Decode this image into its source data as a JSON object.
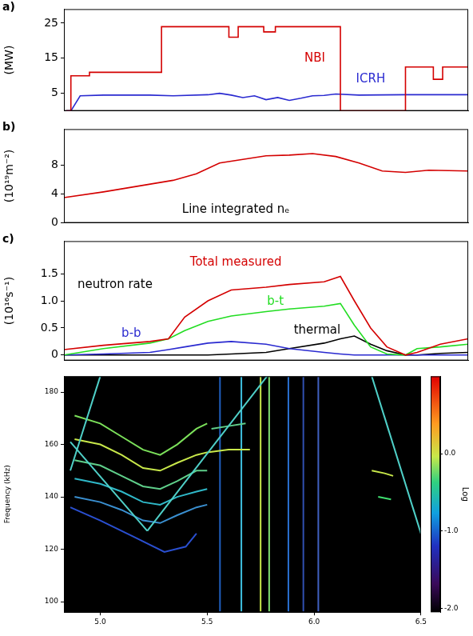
{
  "chart_data": [
    {
      "type": "line",
      "panel_label": "a)",
      "ylabel": "(MW)",
      "xlim": [
        4.83,
        6.57
      ],
      "ylim": [
        0,
        29
      ],
      "yticks": [
        5,
        15,
        25
      ],
      "grid": false,
      "tick_labels": "y",
      "series": [
        {
          "color": "#d40000",
          "x": [
            4.84,
            4.86,
            4.86,
            4.94,
            4.94,
            5.25,
            5.25,
            5.54,
            5.54,
            5.58,
            5.58,
            5.69,
            5.69,
            5.74,
            5.74,
            6.02,
            6.02,
            6.3,
            6.3,
            6.42,
            6.42,
            6.46,
            6.46,
            6.57
          ],
          "values": [
            0,
            0,
            10,
            10,
            11,
            11,
            24,
            24,
            21,
            21,
            24,
            24,
            22.5,
            22.5,
            24,
            24,
            0,
            0,
            12.5,
            12.5,
            9,
            9,
            12.5,
            12.5
          ]
        },
        {
          "color": "#2a2ad0",
          "x": [
            4.84,
            4.86,
            4.9,
            5.0,
            5.2,
            5.3,
            5.45,
            5.5,
            5.55,
            5.6,
            5.65,
            5.7,
            5.75,
            5.8,
            5.85,
            5.9,
            5.95,
            6.0,
            6.1,
            6.3,
            6.57
          ],
          "values": [
            0,
            0,
            4.3,
            4.5,
            4.5,
            4.3,
            4.6,
            5.0,
            4.5,
            3.8,
            4.3,
            3.2,
            3.8,
            3.0,
            3.6,
            4.3,
            4.4,
            4.8,
            4.5,
            4.6,
            4.6
          ]
        }
      ],
      "annotations": [
        {
          "text": "NBI",
          "x": 5.91,
          "y": 15,
          "color": "#d40000"
        },
        {
          "text": "ICRH",
          "x": 6.15,
          "y": 9,
          "color": "#2a2ad0"
        }
      ]
    },
    {
      "type": "line",
      "panel_label": "b)",
      "ylabel": "(10¹⁹m⁻²)",
      "xlim": [
        4.83,
        6.57
      ],
      "ylim": [
        0,
        13
      ],
      "yticks": [
        0,
        4,
        8
      ],
      "grid": false,
      "tick_labels": "y",
      "x": [
        4.83,
        5.0,
        5.15,
        5.3,
        5.4,
        5.5,
        5.6,
        5.7,
        5.8,
        5.9,
        6.0,
        6.1,
        6.2,
        6.3,
        6.4,
        6.57
      ],
      "series": [
        {
          "color": "#d40000",
          "values": [
            3.5,
            4.3,
            5.1,
            5.9,
            6.8,
            8.3,
            8.8,
            9.3,
            9.4,
            9.6,
            9.2,
            8.3,
            7.2,
            7.0,
            7.3,
            7.2
          ]
        }
      ],
      "annotations": [
        {
          "text": "Line integrated nₑ",
          "x": 5.57,
          "y": 1.8,
          "color": "#000000"
        }
      ]
    },
    {
      "type": "line",
      "panel_label": "c)",
      "ylabel": "(10¹⁶s⁻¹)",
      "xlim": [
        4.83,
        6.57
      ],
      "ylim": [
        -0.1,
        2.1
      ],
      "yticks": [
        0,
        0.5,
        {
          "value": 1,
          "label": "1.0"
        },
        1.5
      ],
      "grid": false,
      "tick_labels": "y",
      "x": [
        4.83,
        5.0,
        5.2,
        5.28,
        5.35,
        5.45,
        5.55,
        5.7,
        5.8,
        5.95,
        6.02,
        6.08,
        6.15,
        6.22,
        6.3,
        6.35,
        6.45,
        6.57
      ],
      "series": [
        {
          "color": "#d40000",
          "values": [
            0.1,
            0.18,
            0.25,
            0.3,
            0.7,
            1.0,
            1.2,
            1.25,
            1.3,
            1.35,
            1.45,
            1.0,
            0.5,
            0.15,
            0.0,
            0.05,
            0.2,
            0.3
          ]
        },
        {
          "color": "#22dd22",
          "values": [
            0,
            0.12,
            0.22,
            0.3,
            0.45,
            0.62,
            0.72,
            0.8,
            0.85,
            0.9,
            0.95,
            0.55,
            0.15,
            0.02,
            0,
            0.12,
            0.15,
            0.2
          ]
        },
        {
          "color": "#2a2ad0",
          "values": [
            0,
            0.02,
            0.05,
            0.1,
            0.15,
            0.22,
            0.25,
            0.2,
            0.12,
            0.05,
            0.02,
            0,
            0,
            0,
            0,
            0,
            0,
            0
          ]
        },
        {
          "color": "#000000",
          "values": [
            0,
            0,
            0,
            0,
            0,
            0,
            0.02,
            0.05,
            0.12,
            0.22,
            0.3,
            0.35,
            0.2,
            0.08,
            0,
            0,
            0.03,
            0.05
          ]
        }
      ],
      "annotations": [
        {
          "text": "Total measured",
          "x": 5.57,
          "y": 1.7,
          "color": "#d40000"
        },
        {
          "text": "neutron rate",
          "x": 5.05,
          "y": 1.3,
          "color": "#000000"
        },
        {
          "text": "b-t",
          "x": 5.74,
          "y": 0.98,
          "color": "#22dd22"
        },
        {
          "text": "b-b",
          "x": 5.12,
          "y": 0.4,
          "color": "#2a2ad0"
        },
        {
          "text": "thermal",
          "x": 5.92,
          "y": 0.45,
          "color": "#000000"
        }
      ]
    },
    {
      "type": "spectrogram",
      "ylabel": "Frequency (kHz)",
      "xlim": [
        4.83,
        6.5
      ],
      "ylim": [
        96,
        186
      ],
      "xticks": [
        {
          "value": 5,
          "label": "5.0"
        },
        5.5,
        {
          "value": 6,
          "label": "6.0"
        },
        6.5
      ],
      "yticks": [
        100,
        120,
        140,
        160,
        180
      ],
      "grid": false,
      "series": [
        {
          "color": "#4fd0c8",
          "x": [
            4.86,
            5.0
          ],
          "values": [
            150,
            186
          ]
        },
        {
          "color": "#4fd0c8",
          "x": [
            4.86,
            5.22
          ],
          "values": [
            161,
            127
          ]
        },
        {
          "color": "#4fd0c8",
          "x": [
            5.22,
            5.78
          ],
          "values": [
            127,
            186
          ]
        },
        {
          "color": "#4fd0c8",
          "x": [
            6.27,
            6.5
          ],
          "values": [
            186,
            126
          ]
        },
        {
          "color": "#7be05a",
          "x": [
            4.88,
            5.0,
            5.1,
            5.2,
            5.28,
            5.36,
            5.45,
            5.5
          ],
          "values": [
            171,
            168,
            163,
            158,
            156,
            160,
            166,
            168
          ]
        },
        {
          "color": "#c8e84a",
          "x": [
            4.88,
            5.0,
            5.1,
            5.2,
            5.28,
            5.36,
            5.45,
            5.5
          ],
          "values": [
            162,
            160,
            156,
            151,
            150,
            153,
            156,
            157
          ]
        },
        {
          "color": "#5fcf8a",
          "x": [
            4.88,
            5.0,
            5.1,
            5.2,
            5.28,
            5.36,
            5.45,
            5.5
          ],
          "values": [
            154,
            152,
            148,
            144,
            143,
            146,
            150,
            150
          ]
        },
        {
          "color": "#2fb8c8",
          "x": [
            4.88,
            5.0,
            5.1,
            5.2,
            5.28,
            5.36,
            5.45,
            5.5
          ],
          "values": [
            147,
            145,
            142,
            138,
            137,
            140,
            142,
            143
          ]
        },
        {
          "color": "#3a8fd0",
          "x": [
            4.88,
            5.0,
            5.1,
            5.2,
            5.28,
            5.36,
            5.45,
            5.5
          ],
          "values": [
            140,
            138,
            135,
            131,
            130,
            133,
            136,
            137
          ]
        },
        {
          "color": "#2a4fd0",
          "x": [
            4.86,
            5.0,
            5.15,
            5.3,
            5.4,
            5.45
          ],
          "values": [
            136,
            131,
            125,
            119,
            121,
            126
          ]
        },
        {
          "color": "#c8e84a",
          "x": [
            5.5,
            5.6,
            5.7
          ],
          "values": [
            157,
            158,
            158
          ]
        },
        {
          "color": "#5fcf8a",
          "x": [
            5.52,
            5.6,
            5.68
          ],
          "values": [
            166,
            167,
            168
          ]
        },
        {
          "color": "#c8e84a",
          "x": [
            6.27,
            6.33,
            6.37
          ],
          "values": [
            150,
            149,
            148
          ]
        },
        {
          "color": "#3fe070",
          "x": [
            6.3,
            6.36
          ],
          "values": [
            140,
            139
          ]
        },
        {
          "color": "#2060c0",
          "x": [
            5.56,
            5.56
          ],
          "values": [
            96,
            186
          ]
        },
        {
          "color": "#3fc0e0",
          "x": [
            5.66,
            5.66
          ],
          "values": [
            96,
            186
          ]
        },
        {
          "color": "#c8e84a",
          "x": [
            5.75,
            5.75
          ],
          "values": [
            96,
            186
          ]
        },
        {
          "color": "#80e070",
          "x": [
            5.79,
            5.79
          ],
          "values": [
            96,
            186
          ]
        },
        {
          "color": "#2a70d0",
          "x": [
            5.88,
            5.88
          ],
          "values": [
            96,
            186
          ]
        },
        {
          "color": "#3050b0",
          "x": [
            5.95,
            5.95
          ],
          "values": [
            96,
            186
          ]
        },
        {
          "color": "#4060c0",
          "x": [
            6.02,
            6.02
          ],
          "values": [
            96,
            186
          ]
        }
      ],
      "colorbar": {
        "label": "Log",
        "range": [
          -2.05,
          1.0
        ],
        "ticks": [
          {
            "value": 0,
            "label": "0.0"
          },
          {
            "value": -1,
            "label": "-1.0"
          },
          {
            "value": -2,
            "label": "-2.0"
          }
        ]
      }
    }
  ]
}
